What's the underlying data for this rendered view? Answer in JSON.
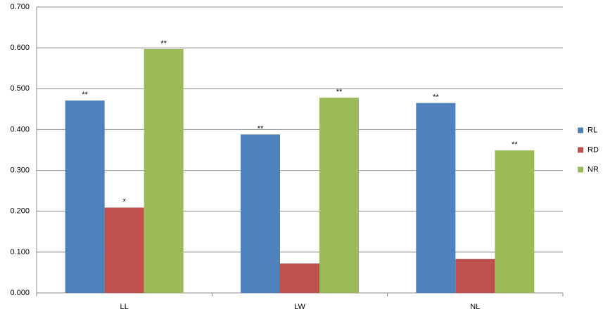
{
  "chart_data": {
    "type": "bar",
    "categories": [
      "LL",
      "LW",
      "NL"
    ],
    "series": [
      {
        "name": "RL",
        "color": "#4f81bd",
        "values": [
          0.471,
          0.388,
          0.465
        ],
        "significance": [
          "**",
          "**",
          "**"
        ]
      },
      {
        "name": "RD",
        "color": "#c0504d",
        "values": [
          0.209,
          0.072,
          0.083
        ],
        "significance": [
          "*",
          null,
          null
        ]
      },
      {
        "name": "NR",
        "color": "#9bbb59",
        "values": [
          0.597,
          0.478,
          0.349
        ],
        "significance": [
          "**",
          "**",
          "**"
        ]
      }
    ],
    "ylim": [
      0,
      0.7
    ],
    "yticks": [
      {
        "value": 0,
        "label": "0.000"
      },
      {
        "value": 0.1,
        "label": "0.100"
      },
      {
        "value": 0.2,
        "label": "0.200"
      },
      {
        "value": 0.3,
        "label": "0.300"
      },
      {
        "value": 0.4,
        "label": "0.400"
      },
      {
        "value": 0.5,
        "label": "0.500"
      },
      {
        "value": 0.6,
        "label": "0.600"
      },
      {
        "value": 0.7,
        "label": "0.700"
      }
    ],
    "grid": true,
    "legend": "right"
  }
}
